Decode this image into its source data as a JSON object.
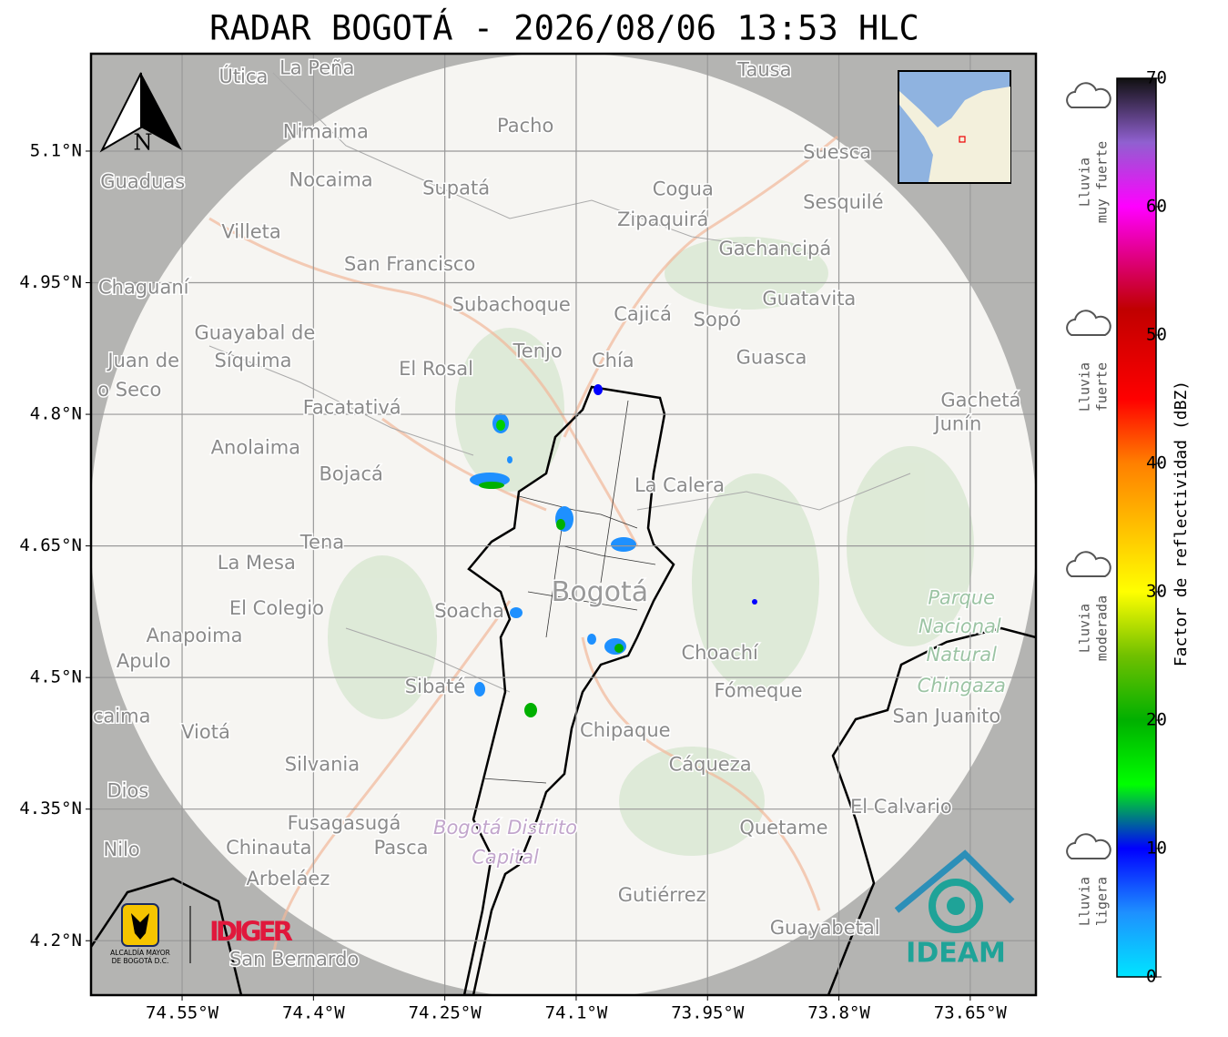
{
  "title": "RADAR BOGOTÁ - 2026/08/06 13:53 HLC",
  "map": {
    "xlim": [
      -74.654,
      -73.575
    ],
    "ylim": [
      4.138,
      5.211
    ],
    "xticks": [
      {
        "value": -74.55,
        "label": "74.55°W"
      },
      {
        "value": -74.4,
        "label": "74.4°W"
      },
      {
        "value": -74.25,
        "label": "74.25°W"
      },
      {
        "value": -74.1,
        "label": "74.1°W"
      },
      {
        "value": -73.95,
        "label": "73.95°W"
      },
      {
        "value": -73.8,
        "label": "73.8°W"
      },
      {
        "value": -73.65,
        "label": "73.65°W"
      }
    ],
    "yticks": [
      {
        "value": 5.1,
        "label": "5.1°N"
      },
      {
        "value": 4.95,
        "label": "4.95°N"
      },
      {
        "value": 4.8,
        "label": "4.8°N"
      },
      {
        "value": 4.65,
        "label": "4.65°N"
      },
      {
        "value": 4.5,
        "label": "4.5°N"
      },
      {
        "value": 4.35,
        "label": "4.35°N"
      },
      {
        "value": 4.2,
        "label": "4.2°N"
      }
    ],
    "grid": true,
    "north": "N",
    "places": [
      {
        "name": "Útica",
        "lon": -74.48,
        "lat": 5.184
      },
      {
        "name": "La Peña",
        "lon": -74.396,
        "lat": 5.194
      },
      {
        "name": "Tausa",
        "lon": -73.885,
        "lat": 5.192
      },
      {
        "name": "Pacho",
        "lon": -74.158,
        "lat": 5.128
      },
      {
        "name": "Nimaima",
        "lon": -74.386,
        "lat": 5.121
      },
      {
        "name": "Guaduas",
        "lon": -74.595,
        "lat": 5.064
      },
      {
        "name": "Nocaima",
        "lon": -74.38,
        "lat": 5.066
      },
      {
        "name": "Supatá",
        "lon": -74.237,
        "lat": 5.057
      },
      {
        "name": "Cogua",
        "lon": -73.978,
        "lat": 5.056
      },
      {
        "name": "Suesca",
        "lon": -73.802,
        "lat": 5.098
      },
      {
        "name": "Sesquilé",
        "lon": -73.795,
        "lat": 5.041
      },
      {
        "name": "Zipaquirá",
        "lon": -74.001,
        "lat": 5.021
      },
      {
        "name": "Villeta",
        "lon": -74.471,
        "lat": 5.007
      },
      {
        "name": "Gachancipá",
        "lon": -73.873,
        "lat": 4.988
      },
      {
        "name": "San Francisco",
        "lon": -74.29,
        "lat": 4.97
      },
      {
        "name": "Chaguaní",
        "lon": -74.594,
        "lat": 4.944
      },
      {
        "name": "Guatavita",
        "lon": -73.834,
        "lat": 4.931
      },
      {
        "name": "Subachoque",
        "lon": -74.174,
        "lat": 4.924
      },
      {
        "name": "Cajicá",
        "lon": -74.024,
        "lat": 4.913
      },
      {
        "name": "Sopó",
        "lon": -73.939,
        "lat": 4.907
      },
      {
        "name": "Guayabal de",
        "lon": -74.467,
        "lat": 4.892
      },
      {
        "name": "Síquima",
        "lon": -74.469,
        "lat": 4.86
      },
      {
        "name": "Juan de",
        "lon": -74.594,
        "lat": 4.86
      },
      {
        "name": "o Seco",
        "lon": -74.61,
        "lat": 4.827
      },
      {
        "name": "Tenjo",
        "lon": -74.144,
        "lat": 4.871
      },
      {
        "name": "Chía",
        "lon": -74.058,
        "lat": 4.86
      },
      {
        "name": "Guasca",
        "lon": -73.877,
        "lat": 4.864
      },
      {
        "name": "El Rosal",
        "lon": -74.26,
        "lat": 4.851
      },
      {
        "name": "Facatativá",
        "lon": -74.356,
        "lat": 4.807
      },
      {
        "name": "Gachetá",
        "lon": -73.638,
        "lat": 4.815
      },
      {
        "name": "Junín",
        "lon": -73.664,
        "lat": 4.788
      },
      {
        "name": "Anolaima",
        "lon": -74.466,
        "lat": 4.761
      },
      {
        "name": "Bojacá",
        "lon": -74.357,
        "lat": 4.731
      },
      {
        "name": "La Calera",
        "lon": -73.982,
        "lat": 4.718
      },
      {
        "name": "Tena",
        "lon": -74.39,
        "lat": 4.653
      },
      {
        "name": "La Mesa",
        "lon": -74.465,
        "lat": 4.63
      },
      {
        "name": "Bogotá",
        "lon": -74.073,
        "lat": 4.596,
        "kind": "city"
      },
      {
        "name": "Soacha",
        "lon": -74.222,
        "lat": 4.575
      },
      {
        "name": "El Colegio",
        "lon": -74.442,
        "lat": 4.578
      },
      {
        "name": "Parque",
        "lon": -73.66,
        "lat": 4.59,
        "kind": "park"
      },
      {
        "name": "Nacional",
        "lon": -73.662,
        "lat": 4.557,
        "kind": "park"
      },
      {
        "name": "Natural",
        "lon": -73.66,
        "lat": 4.525,
        "kind": "park"
      },
      {
        "name": "Chingaza",
        "lon": -73.66,
        "lat": 4.49,
        "kind": "park"
      },
      {
        "name": "Anapoima",
        "lon": -74.536,
        "lat": 4.547
      },
      {
        "name": "Apulo",
        "lon": -74.594,
        "lat": 4.518
      },
      {
        "name": "Choachí",
        "lon": -73.936,
        "lat": 4.527
      },
      {
        "name": "Sibaté",
        "lon": -74.261,
        "lat": 4.489
      },
      {
        "name": "Fómeque",
        "lon": -73.892,
        "lat": 4.484
      },
      {
        "name": "San Juanito",
        "lon": -73.677,
        "lat": 4.455
      },
      {
        "name": "caima",
        "lon": -74.619,
        "lat": 4.455
      },
      {
        "name": "Viotá",
        "lon": -74.523,
        "lat": 4.437
      },
      {
        "name": "Chipaque",
        "lon": -74.044,
        "lat": 4.439
      },
      {
        "name": "Silvania",
        "lon": -74.39,
        "lat": 4.4
      },
      {
        "name": "Cáqueza",
        "lon": -73.947,
        "lat": 4.4
      },
      {
        "name": "Dios",
        "lon": -74.612,
        "lat": 4.37
      },
      {
        "name": "El Calvario",
        "lon": -73.729,
        "lat": 4.352
      },
      {
        "name": "Quetame",
        "lon": -73.863,
        "lat": 4.328
      },
      {
        "name": "Fusagasugá",
        "lon": -74.365,
        "lat": 4.333
      },
      {
        "name": "Bogotá Distrito",
        "lon": -74.181,
        "lat": 4.328,
        "kind": "district"
      },
      {
        "name": "Capital",
        "lon": -74.181,
        "lat": 4.294,
        "kind": "district"
      },
      {
        "name": "Nilo",
        "lon": -74.619,
        "lat": 4.303
      },
      {
        "name": "Chinauta",
        "lon": -74.451,
        "lat": 4.305
      },
      {
        "name": "Pasca",
        "lon": -74.3,
        "lat": 4.305
      },
      {
        "name": "Arbeláez",
        "lon": -74.429,
        "lat": 4.27
      },
      {
        "name": "Gutiérrez",
        "lon": -74.002,
        "lat": 4.251
      },
      {
        "name": "Guayabetal",
        "lon": -73.816,
        "lat": 4.214
      },
      {
        "name": "San Bernardo",
        "lon": -74.422,
        "lat": 4.178
      }
    ]
  },
  "colorbar": {
    "label": "Factor de reflectividad (dBZ)",
    "lim": [
      0,
      70
    ],
    "ticks": [
      0,
      10,
      20,
      30,
      40,
      50,
      60,
      70
    ],
    "stops": [
      [
        0,
        "#00e5ff"
      ],
      [
        5,
        "#1e90ff"
      ],
      [
        10,
        "#0000ff"
      ],
      [
        15,
        "#00ff00"
      ],
      [
        20,
        "#00b000"
      ],
      [
        25,
        "#70c000"
      ],
      [
        30,
        "#ffff00"
      ],
      [
        35,
        "#ffc000"
      ],
      [
        40,
        "#ff8000"
      ],
      [
        45,
        "#ff0000"
      ],
      [
        52,
        "#c00000"
      ],
      [
        60,
        "#ff00ff"
      ],
      [
        65,
        "#9060d0"
      ],
      [
        70,
        "#101010"
      ]
    ]
  },
  "rain": [
    {
      "lines": [
        "Lluvia",
        "muy fuerte"
      ]
    },
    {
      "lines": [
        "Lluvia",
        "fuerte"
      ]
    },
    {
      "lines": [
        "Lluvia",
        "moderada"
      ]
    },
    {
      "lines": [
        "Lluvia",
        "ligera"
      ]
    }
  ],
  "logos": {
    "alcaldia": [
      "ALCALDÍA MAYOR",
      "DE BOGOTÁ D.C."
    ],
    "idiger": "IDIGER",
    "ideam": "IDEAM"
  }
}
